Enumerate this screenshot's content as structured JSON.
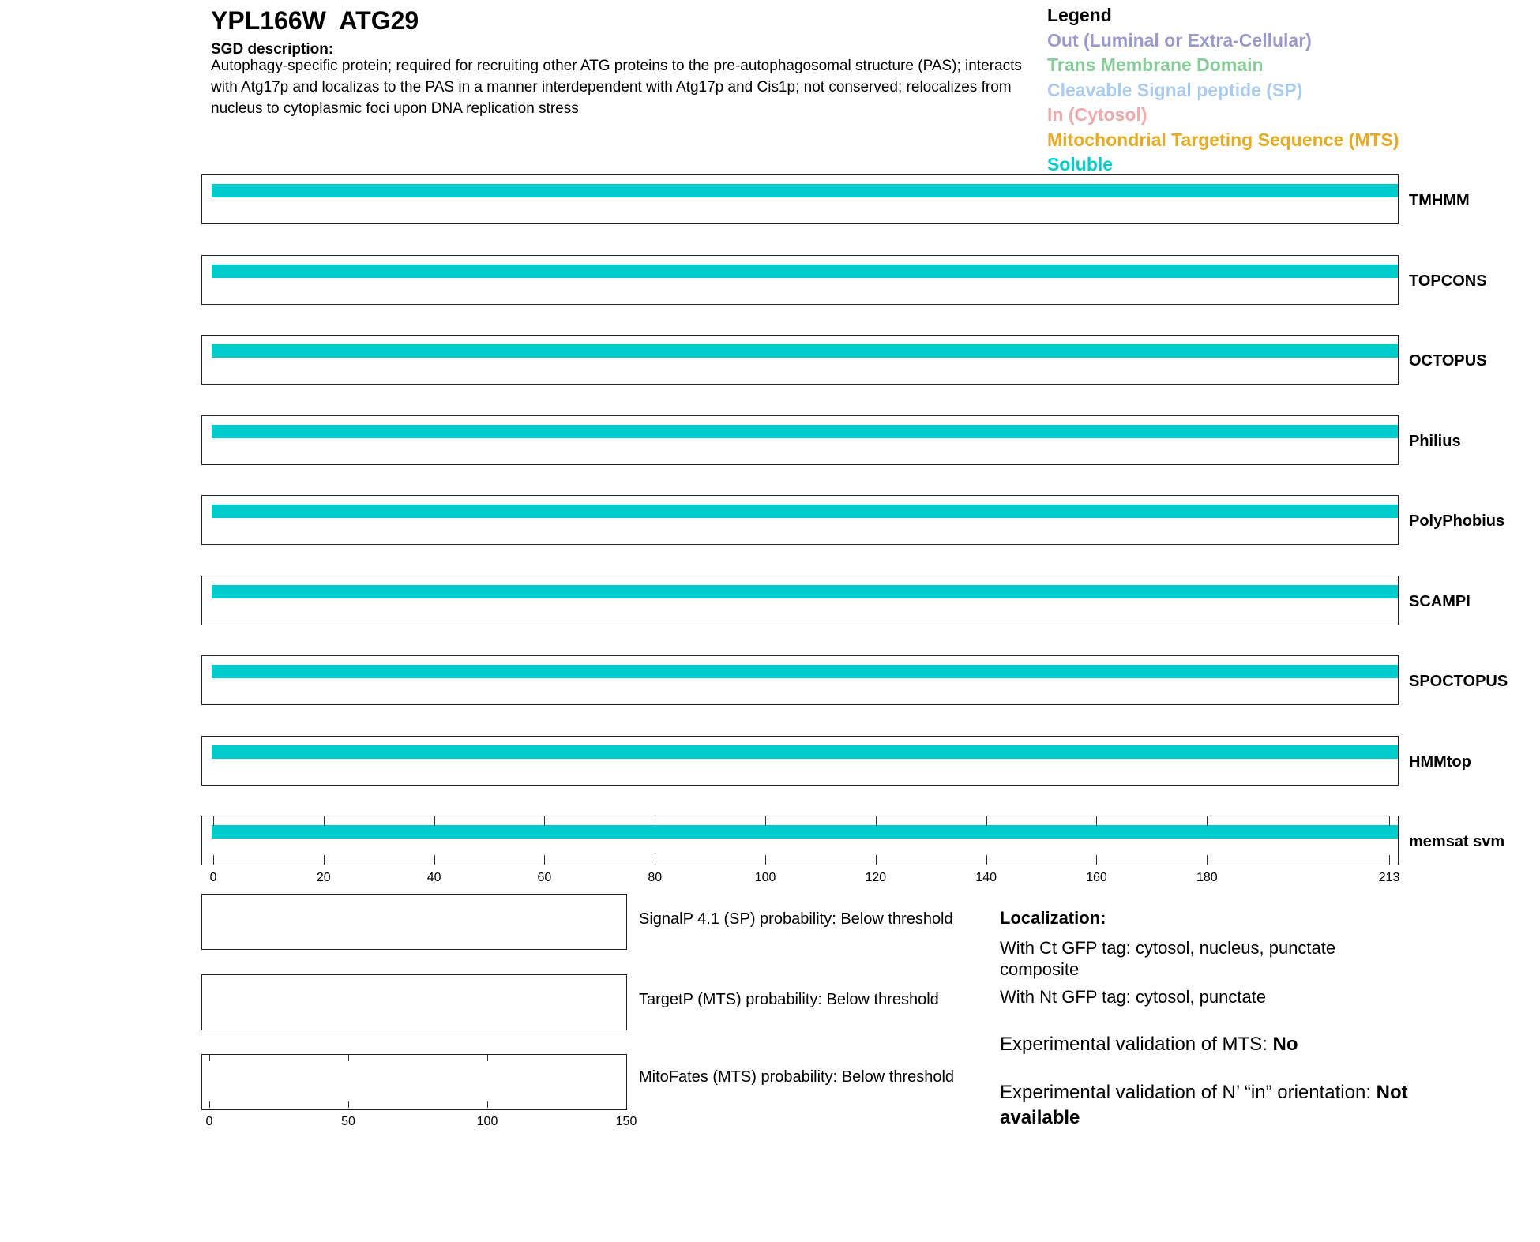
{
  "header": {
    "title": "YPL166W  ATG29",
    "description_label": "SGD description:",
    "description": "Autophagy-specific protein; required for recruiting other ATG proteins to the pre-autophagosomal structure (PAS); interacts with Atg17p and localizas to the PAS in a manner interdependent with Atg17p and Cis1p; not conserved; relocalizes from nucleus to cytoplasmic foci upon DNA replication stress"
  },
  "legend": {
    "title": "Legend",
    "items": [
      {
        "label": "Out (Luminal or Extra-Cellular)",
        "color": "#9999cc"
      },
      {
        "label": "Trans Membrane Domain",
        "color": "#88cc99"
      },
      {
        "label": "Cleavable Signal peptide (SP)",
        "color": "#aaccee"
      },
      {
        "label": "In (Cytosol)",
        "color": "#eeaaaa"
      },
      {
        "label": "Mitochondrial Targeting Sequence (MTS)",
        "color": "#e8aa22"
      },
      {
        "label": "Soluble",
        "color": "#00cccc"
      }
    ]
  },
  "chart_data": {
    "type": "bar",
    "xlim": [
      0,
      213
    ],
    "xticks": [
      "0",
      "20",
      "40",
      "60",
      "80",
      "100",
      "120",
      "140",
      "160",
      "180",
      "213"
    ],
    "tracks": [
      {
        "name": "TMHMM",
        "segments": [
          {
            "start": 0,
            "end": 213,
            "type": "Soluble"
          }
        ]
      },
      {
        "name": "TOPCONS",
        "segments": [
          {
            "start": 0,
            "end": 213,
            "type": "Soluble"
          }
        ]
      },
      {
        "name": "OCTOPUS",
        "segments": [
          {
            "start": 0,
            "end": 213,
            "type": "Soluble"
          }
        ]
      },
      {
        "name": "Philius",
        "segments": [
          {
            "start": 0,
            "end": 213,
            "type": "Soluble"
          }
        ]
      },
      {
        "name": "PolyPhobius",
        "segments": [
          {
            "start": 0,
            "end": 213,
            "type": "Soluble"
          }
        ]
      },
      {
        "name": "SCAMPI",
        "segments": [
          {
            "start": 0,
            "end": 213,
            "type": "Soluble"
          }
        ]
      },
      {
        "name": "SPOCTOPUS",
        "segments": [
          {
            "start": 0,
            "end": 213,
            "type": "Soluble"
          }
        ]
      },
      {
        "name": "HMMtop",
        "segments": [
          {
            "start": 0,
            "end": 213,
            "type": "Soluble"
          }
        ]
      },
      {
        "name": "memsat svm",
        "segments": [
          {
            "start": 0,
            "end": 213,
            "type": "Soluble"
          }
        ]
      }
    ],
    "probability_xlim": [
      0,
      150
    ],
    "probability_xticks": [
      "0",
      "50",
      "100",
      "150"
    ],
    "probabilities": [
      {
        "label": "SignalP 4.1 (SP) probability: Below threshold"
      },
      {
        "label": "TargetP (MTS) probability: Below threshold"
      },
      {
        "label": "MitoFates (MTS) probability: Below threshold"
      }
    ]
  },
  "localization": {
    "title": "Localization:",
    "ct": "With Ct GFP tag: cytosol, nucleus, punctate composite",
    "nt": "With Nt GFP tag: cytosol, punctate",
    "mts_label": "Experimental validation of MTS: ",
    "mts_value": "No",
    "nin_label": "Experimental validation of N’ “in” orientation: ",
    "nin_value": "Not available"
  }
}
